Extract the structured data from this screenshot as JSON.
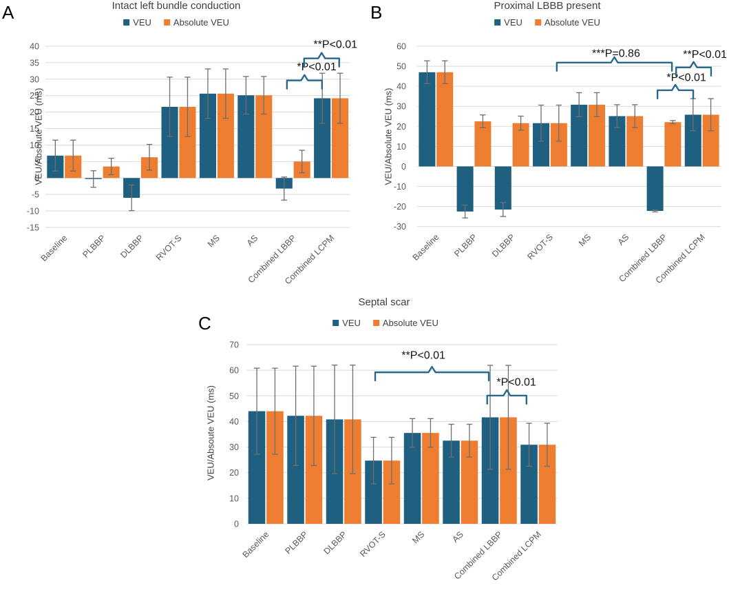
{
  "colors": {
    "veu_blue": "#1f5f80",
    "absolute_veu_orange": "#ed7d31",
    "error_bar": "#6e6e6e",
    "bracket": "#28688f",
    "gridline": "#d9d9d9",
    "tick_text": "#595959",
    "title_text": "#404040",
    "annotation_text": "#111111"
  },
  "chart_data": [
    {
      "panel_label": "A",
      "type": "bar",
      "title": "Intact left bundle conduction",
      "ylabel": "VEU/Absolute VEU (ms)",
      "ylim": [
        -15,
        40
      ],
      "yticks": [
        40,
        35,
        30,
        25,
        20,
        15,
        10,
        5,
        0,
        -5,
        -10,
        -15
      ],
      "grid": true,
      "legend": [
        "VEU",
        "Absolute VEU"
      ],
      "legend_position": "top",
      "categories": [
        "Baseline",
        "PLBBP",
        "DLBBP",
        "RVOT-S",
        "MS",
        "AS",
        "Combined LBBP",
        "Combined LCPM"
      ],
      "series": [
        {
          "name": "VEU",
          "values": [
            6.8,
            -0.3,
            -6.0,
            21.6,
            25.6,
            25.1,
            -3.2,
            24.2
          ],
          "err": [
            4.7,
            2.5,
            3.9,
            9.0,
            7.5,
            5.7,
            3.5,
            7.6
          ]
        },
        {
          "name": "Absolute VEU",
          "values": [
            6.8,
            3.5,
            6.3,
            21.6,
            25.6,
            25.1,
            5.0,
            24.2
          ],
          "err": [
            4.7,
            2.5,
            3.9,
            9.0,
            7.5,
            5.7,
            3.4,
            7.6
          ]
        }
      ],
      "annotations": [
        {
          "text": "*P<0.01",
          "x_from": 5.84,
          "x_to": 6.76,
          "y": 29.6,
          "text_x": 6.62,
          "text_y": 33.8
        },
        {
          "text": "**P<0.01",
          "x_from": 6.29,
          "x_to": 7.21,
          "y": 36.3,
          "text_x": 7.11,
          "text_y": 40.6
        }
      ]
    },
    {
      "panel_label": "B",
      "type": "bar",
      "title": "Proximal LBBB present",
      "ylabel": "VEU/Absolute VEU (ms)",
      "ylim": [
        -30,
        60
      ],
      "yticks": [
        60,
        50,
        40,
        30,
        20,
        10,
        0,
        -10,
        -20,
        -30
      ],
      "grid": true,
      "legend": [
        "VEU",
        "Absolute VEU"
      ],
      "legend_position": "top",
      "categories": [
        "Baseline",
        "PLBBP",
        "DLBBP",
        "RVOT-S",
        "MS",
        "AS",
        "Combined LBBP",
        "Combined LCPM"
      ],
      "series": [
        {
          "name": "VEU",
          "values": [
            47.0,
            -22.5,
            -21.5,
            21.6,
            30.8,
            25.1,
            -22.2,
            25.8
          ],
          "err": [
            5.7,
            3.2,
            3.5,
            9.0,
            6.0,
            5.7,
            0.5,
            8.0
          ]
        },
        {
          "name": "Absolute VEU",
          "values": [
            47.0,
            22.5,
            21.6,
            21.6,
            30.8,
            25.1,
            22.1,
            25.8
          ],
          "err": [
            5.7,
            3.2,
            3.5,
            9.0,
            6.0,
            5.7,
            0.8,
            8.0
          ]
        }
      ],
      "annotations": [
        {
          "text": "***P=0.86",
          "x_from": 3.18,
          "x_to": 6.21,
          "y": 51.8,
          "text_x": 4.74,
          "text_y": 56.5
        },
        {
          "text": "*P<0.01",
          "x_from": 5.83,
          "x_to": 6.77,
          "y": 38.0,
          "text_x": 6.59,
          "text_y": 44.5
        },
        {
          "text": "**P<0.01",
          "x_from": 6.32,
          "x_to": 7.24,
          "y": 49.4,
          "text_x": 7.08,
          "text_y": 56.0
        }
      ]
    },
    {
      "panel_label": "C",
      "type": "bar",
      "title": "Septal scar",
      "ylabel": "VEU/Absoute VEU (ms)",
      "ylim": [
        0,
        70
      ],
      "yticks": [
        70,
        60,
        50,
        40,
        30,
        20,
        10,
        0
      ],
      "grid": true,
      "legend": [
        "VEU",
        "Absolute VEU"
      ],
      "legend_position": "top",
      "categories": [
        "Baseline",
        "PLBBP",
        "DLBBP",
        "RVOT-S",
        "MS",
        "AS",
        "Combined LBBP",
        "Combined LCPM"
      ],
      "series": [
        {
          "name": "VEU",
          "values": [
            44.0,
            42.2,
            40.8,
            24.7,
            35.5,
            32.5,
            41.6,
            30.9
          ],
          "err": [
            16.8,
            19.4,
            21.2,
            9.1,
            5.6,
            6.4,
            20.3,
            8.4
          ]
        },
        {
          "name": "Absolute VEU",
          "values": [
            44.0,
            42.2,
            40.8,
            24.7,
            35.5,
            32.5,
            41.6,
            30.9
          ],
          "err": [
            16.8,
            19.4,
            21.2,
            9.1,
            5.6,
            6.4,
            20.3,
            8.4
          ]
        }
      ],
      "annotations": [
        {
          "text": "**P<0.01",
          "x_from": 2.81,
          "x_to": 5.73,
          "y": 59.2,
          "text_x": 4.05,
          "text_y": 66.0
        },
        {
          "text": "*P<0.01",
          "x_from": 5.69,
          "x_to": 6.7,
          "y": 50.1,
          "text_x": 6.44,
          "text_y": 55.5
        }
      ]
    }
  ]
}
